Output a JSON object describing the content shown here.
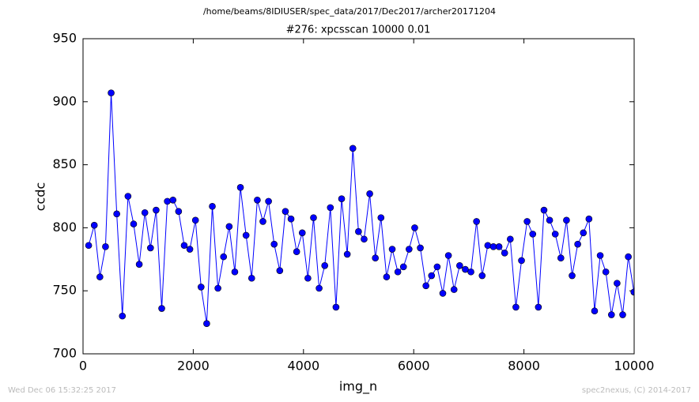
{
  "chart_data": {
    "type": "line",
    "title": "/home/beams/8IDIUSER/spec_data/2017/Dec2017/archer20171204",
    "subtitle": "#276: xpcsscan 10000 0.01",
    "x_label": "img_n",
    "y_label": "ccdc",
    "footer_left": "Wed Dec 06 15:32:25 2017",
    "footer_right": "spec2nexus, (C) 2014-2017",
    "color": "#0000ff",
    "x": [
      102,
      204,
      306,
      408,
      510,
      612,
      714,
      816,
      918,
      1020,
      1122,
      1224,
      1326,
      1428,
      1530,
      1632,
      1734,
      1836,
      1938,
      2040,
      2142,
      2244,
      2346,
      2448,
      2550,
      2652,
      2754,
      2856,
      2958,
      3060,
      3162,
      3264,
      3366,
      3468,
      3570,
      3672,
      3774,
      3876,
      3978,
      4080,
      4182,
      4284,
      4386,
      4488,
      4590,
      4692,
      4794,
      4896,
      4998,
      5100,
      5202,
      5304,
      5406,
      5508,
      5610,
      5712,
      5814,
      5916,
      6018,
      6120,
      6222,
      6324,
      6426,
      6528,
      6630,
      6732,
      6834,
      6936,
      7038,
      7140,
      7242,
      7344,
      7446,
      7548,
      7650,
      7752,
      7854,
      7956,
      8058,
      8160,
      8262,
      8364,
      8466,
      8568,
      8670,
      8772,
      8874,
      8976,
      9078,
      9180,
      9282,
      9384,
      9486,
      9588,
      9690,
      9792,
      9894,
      9996
    ],
    "values": [
      786,
      802,
      761,
      785,
      907,
      811,
      730,
      825,
      803,
      771,
      812,
      784,
      814,
      736,
      821,
      822,
      813,
      786,
      783,
      806,
      753,
      724,
      817,
      752,
      777,
      801,
      765,
      832,
      794,
      760,
      822,
      805,
      821,
      787,
      766,
      813,
      807,
      781,
      796,
      760,
      808,
      752,
      770,
      816,
      737,
      823,
      779,
      863,
      797,
      791,
      827,
      776,
      808,
      761,
      783,
      765,
      769,
      783,
      800,
      784,
      754,
      762,
      769,
      748,
      778,
      751,
      770,
      767,
      765,
      805,
      762,
      786,
      785,
      785,
      780,
      791,
      737,
      774,
      805,
      795,
      737,
      814,
      806,
      795,
      776,
      806,
      762,
      787,
      796,
      807,
      734,
      778,
      765,
      731,
      756,
      731,
      777,
      749
    ],
    "xlim": [
      0,
      10000
    ],
    "xticks": [
      0,
      2000,
      4000,
      6000,
      8000,
      10000
    ],
    "ylim": [
      700,
      950
    ],
    "yticks": [
      700,
      750,
      800,
      850,
      900,
      950
    ]
  }
}
